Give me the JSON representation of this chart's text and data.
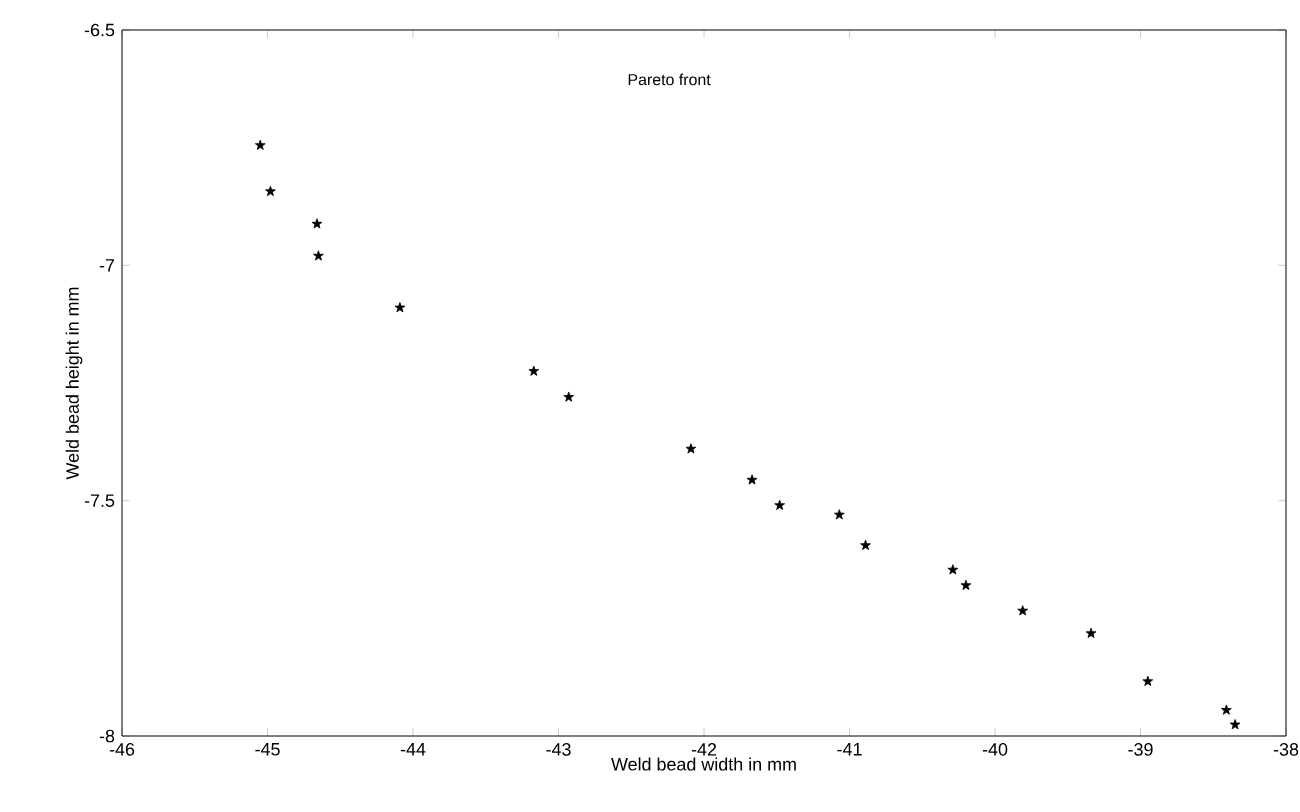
{
  "chart_data": {
    "type": "scatter",
    "xlabel": "Weld bead width in mm",
    "ylabel": "Weld bead height in mm",
    "annotations": [
      "Pareto front"
    ],
    "marker": "star",
    "grid": false,
    "xlim": [
      -46,
      -38
    ],
    "ylim": [
      -8,
      -6.5
    ],
    "xticks": [
      -46,
      -45,
      -44,
      -43,
      -42,
      -41,
      -40,
      -39,
      -38
    ],
    "yticks": [
      -8,
      -7.5,
      -7,
      -6.5
    ],
    "series": [
      {
        "color": "#000000",
        "x": [
          -45.05,
          -44.98,
          -44.66,
          -44.65,
          -44.09,
          -43.17,
          -42.93,
          -42.09,
          -41.67,
          -41.48,
          -41.07,
          -40.89,
          -40.29,
          -40.2,
          -39.81,
          -39.34,
          -38.95,
          -38.41,
          -38.35
        ],
        "values": [
          -6.745,
          -6.843,
          -6.912,
          -6.98,
          -7.09,
          -7.225,
          -7.28,
          -7.39,
          -7.456,
          -7.51,
          -7.53,
          -7.595,
          -7.647,
          -7.68,
          -7.734,
          -7.782,
          -7.884,
          -7.945,
          -7.976
        ]
      }
    ]
  }
}
